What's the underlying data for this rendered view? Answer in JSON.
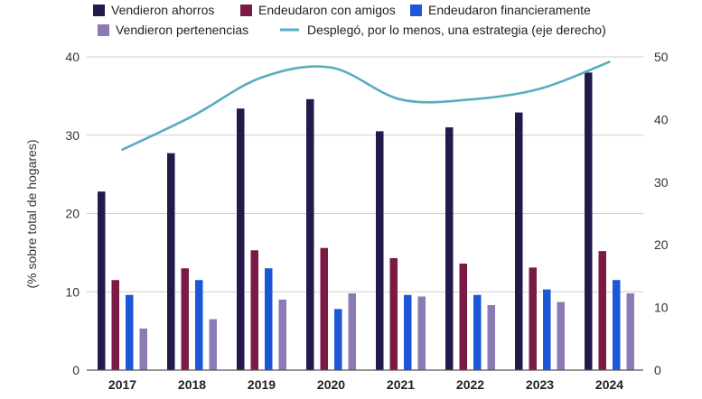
{
  "chart_data": {
    "type": "bar",
    "categories": [
      "2017",
      "2018",
      "2019",
      "2020",
      "2021",
      "2022",
      "2023",
      "2024"
    ],
    "series": [
      {
        "name": "Vendieron ahorros",
        "color": "#231a4b",
        "values": [
          22.8,
          27.7,
          33.4,
          34.6,
          30.5,
          31.0,
          32.9,
          38.0
        ]
      },
      {
        "name": "Endeudaron con amigos",
        "color": "#7a1a45",
        "values": [
          11.5,
          13.0,
          15.3,
          15.6,
          14.3,
          13.6,
          13.1,
          15.2
        ]
      },
      {
        "name": "Endeudaron financieramente",
        "color": "#1b57d6",
        "values": [
          9.6,
          11.5,
          13.0,
          7.8,
          9.6,
          9.6,
          10.3,
          11.5
        ]
      },
      {
        "name": "Vendieron pertenencias",
        "color": "#8c7ab5",
        "values": [
          5.3,
          6.5,
          9.0,
          9.8,
          9.4,
          8.3,
          8.7,
          9.8
        ]
      }
    ],
    "line_series": {
      "name": "Desplegó, por lo menos, una estrategia (eje derecho)",
      "color": "#5aacbf",
      "axis": "right",
      "values": [
        35.2,
        40.5,
        46.7,
        48.3,
        43.2,
        43.2,
        44.9,
        49.2
      ]
    },
    "ylabel": "(% sobre total de hogares)",
    "ylim": [
      0,
      40
    ],
    "yticks": [
      "0",
      "10",
      "20",
      "30",
      "40"
    ],
    "y2lim": [
      0,
      50
    ],
    "y2ticks": [
      "0",
      "10",
      "20",
      "30",
      "40",
      "50"
    ],
    "grid": true,
    "legend_position": "top"
  }
}
